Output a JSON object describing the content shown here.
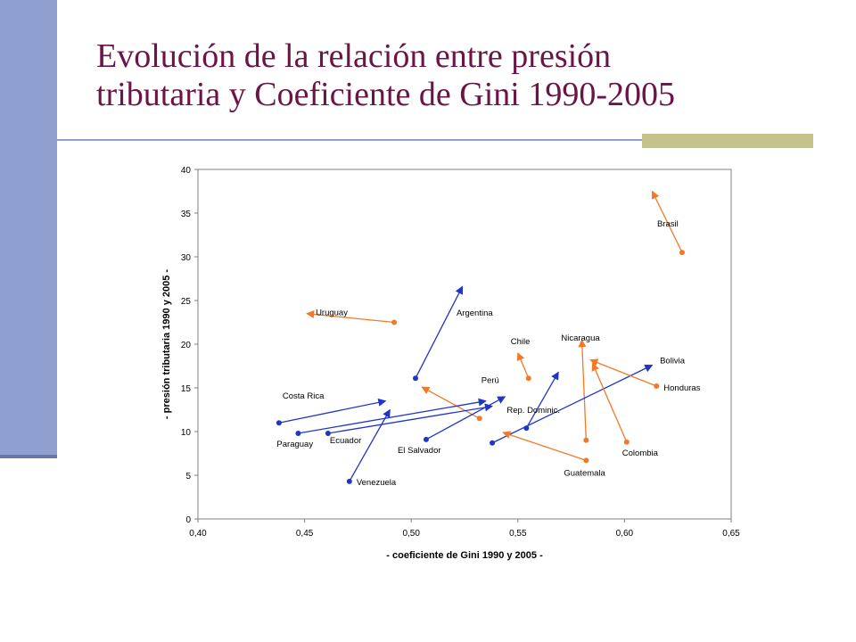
{
  "slide": {
    "title_line1": "Evolución de la relación entre presión",
    "title_line2": "tributaria y Coeficiente de Gini 1990-2005"
  },
  "colors": {
    "side_bar": "#8f9fcf",
    "title": "#6b1547",
    "rule_block": "#c4c48a",
    "increase_arrow": "#1f35c8",
    "decrease_arrow": "#f07a2a"
  },
  "chart_data": {
    "type": "scatter",
    "title": "",
    "xlabel": "- coeficiente de Gini 1990 y 2005 -",
    "ylabel": "- presión tributaria 1990 y 2005 -",
    "xlim": [
      0.4,
      0.65
    ],
    "ylim": [
      0,
      40
    ],
    "x_ticks": [
      0.4,
      0.45,
      0.5,
      0.55,
      0.6,
      0.65
    ],
    "x_tick_labels": [
      "0,40",
      "0,45",
      "0,50",
      "0,55",
      "0,60",
      "0,65"
    ],
    "y_ticks": [
      0,
      5,
      10,
      15,
      20,
      25,
      30,
      35,
      40
    ],
    "y_tick_labels": [
      "0",
      "5",
      "10",
      "15",
      "20",
      "25",
      "30",
      "35",
      "40"
    ],
    "grid": false,
    "legend": "none",
    "arrow_meaning": "each arrow goes from the 1990 value (dot) to the 2005 value (arrowhead)",
    "series": [
      {
        "label": "Brasil",
        "color": "decrease",
        "from": [
          0.627,
          30.5
        ],
        "to": [
          0.613,
          37.5
        ]
      },
      {
        "label": "Uruguay",
        "color": "decrease",
        "from": [
          0.492,
          22.5
        ],
        "to": [
          0.451,
          23.5
        ]
      },
      {
        "label": "Argentina",
        "color": "increase",
        "from": [
          0.502,
          16.1
        ],
        "to": [
          0.524,
          26.6
        ]
      },
      {
        "label": "Chile",
        "color": "decrease",
        "from": [
          0.555,
          16.1
        ],
        "to": [
          0.55,
          19.0
        ]
      },
      {
        "label": "Nicaragua",
        "color": "decrease",
        "from": [
          0.582,
          9.0
        ],
        "to": [
          0.58,
          20.5
        ]
      },
      {
        "label": "Bolivia",
        "color": "increase",
        "from": [
          0.538,
          8.7
        ],
        "to": [
          0.613,
          17.6
        ]
      },
      {
        "label": "Honduras",
        "color": "decrease",
        "from": [
          0.615,
          15.2
        ],
        "to": [
          0.584,
          18.2
        ]
      },
      {
        "label": "Perú",
        "color": "decrease",
        "from": [
          0.532,
          11.5
        ],
        "to": [
          0.505,
          15.1
        ]
      },
      {
        "label": "Costa Rica",
        "color": "increase",
        "from": [
          0.438,
          11.0
        ],
        "to": [
          0.488,
          13.5
        ]
      },
      {
        "label": "Rep. Dominic.",
        "color": "increase",
        "from": [
          0.554,
          10.4
        ],
        "to": [
          0.569,
          16.8
        ]
      },
      {
        "label": "Paraguay",
        "color": "increase",
        "from": [
          0.447,
          9.8
        ],
        "to": [
          0.535,
          13.5
        ]
      },
      {
        "label": "Ecuador",
        "color": "increase",
        "from": [
          0.461,
          9.8
        ],
        "to": [
          0.538,
          12.9
        ]
      },
      {
        "label": "El Salvador",
        "color": "increase",
        "from": [
          0.507,
          9.1
        ],
        "to": [
          0.544,
          14.0
        ]
      },
      {
        "label": "Colombia",
        "color": "decrease",
        "from": [
          0.601,
          8.8
        ],
        "to": [
          0.585,
          17.8
        ]
      },
      {
        "label": "Guatemala",
        "color": "decrease",
        "from": [
          0.582,
          6.7
        ],
        "to": [
          0.543,
          9.9
        ]
      },
      {
        "label": "Venezuela",
        "color": "increase",
        "from": [
          0.471,
          4.3
        ],
        "to": [
          0.49,
          12.5
        ]
      }
    ]
  }
}
